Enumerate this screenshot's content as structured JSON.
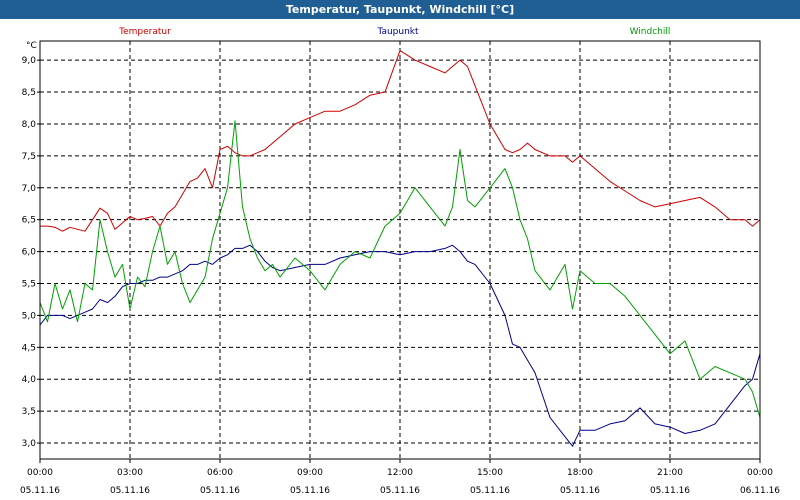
{
  "window": {
    "title": "Temperatur, Taupunkt, Windchill [°C]"
  },
  "legend": {
    "temperature": "Temperatur",
    "dewpoint": "Taupunkt",
    "windchill": "Windchill"
  },
  "chart_data": {
    "type": "line",
    "title": "Temperatur, Taupunkt, Windchill [°C]",
    "ylabel": "°C",
    "xlabel": "",
    "ylim": [
      2.75,
      9.3
    ],
    "xlim": [
      0,
      24
    ],
    "grid": true,
    "legend_position": "top",
    "y_ticks": [
      "3,0",
      "3,5",
      "4,0",
      "4,5",
      "5,0",
      "5,5",
      "6,0",
      "6,5",
      "7,0",
      "7,5",
      "8,0",
      "8,5",
      "9,0"
    ],
    "y_tick_values": [
      3.0,
      3.5,
      4.0,
      4.5,
      5.0,
      5.5,
      6.0,
      6.5,
      7.0,
      7.5,
      8.0,
      8.5,
      9.0
    ],
    "x_tick_hours": [
      0,
      3,
      6,
      9,
      12,
      15,
      18,
      21,
      24
    ],
    "x_tick_times": [
      "00:00",
      "03:00",
      "06:00",
      "09:00",
      "12:00",
      "15:00",
      "18:00",
      "21:00",
      "00:00"
    ],
    "x_tick_dates": [
      "05.11.16",
      "05.11.16",
      "05.11.16",
      "05.11.16",
      "05.11.16",
      "05.11.16",
      "05.11.16",
      "05.11.16",
      "06.11.16"
    ],
    "series": [
      {
        "name": "Temperatur",
        "color": "#d00000",
        "x": [
          0,
          0.25,
          0.5,
          0.75,
          1,
          1.25,
          1.5,
          1.75,
          2,
          2.25,
          2.5,
          2.75,
          3,
          3.25,
          3.5,
          3.75,
          4,
          4.25,
          4.5,
          4.75,
          5,
          5.25,
          5.5,
          5.75,
          6,
          6.25,
          6.5,
          6.75,
          7,
          7.25,
          7.5,
          7.75,
          8,
          8.5,
          9,
          9.5,
          10,
          10.5,
          11,
          11.5,
          12,
          12.5,
          13,
          13.5,
          13.75,
          14,
          14.25,
          14.5,
          15,
          15.5,
          15.75,
          16,
          16.25,
          16.5,
          17,
          17.5,
          17.75,
          18,
          18.5,
          19,
          19.5,
          20,
          20.5,
          21,
          21.5,
          22,
          22.5,
          23,
          23.5,
          23.75,
          24
        ],
        "values": [
          6.4,
          6.4,
          6.38,
          6.32,
          6.38,
          6.35,
          6.32,
          6.5,
          6.68,
          6.6,
          6.35,
          6.45,
          6.55,
          6.5,
          6.52,
          6.55,
          6.4,
          6.6,
          6.7,
          6.9,
          7.1,
          7.15,
          7.3,
          7.0,
          7.6,
          7.65,
          7.55,
          7.5,
          7.5,
          7.55,
          7.6,
          7.7,
          7.8,
          8.0,
          8.1,
          8.2,
          8.2,
          8.3,
          8.45,
          8.5,
          9.15,
          9.0,
          8.9,
          8.8,
          8.9,
          9.0,
          8.9,
          8.6,
          8.0,
          7.6,
          7.55,
          7.6,
          7.7,
          7.6,
          7.5,
          7.5,
          7.4,
          7.5,
          7.3,
          7.1,
          6.95,
          6.8,
          6.7,
          6.75,
          6.8,
          6.85,
          6.7,
          6.5,
          6.5,
          6.4,
          6.5
        ]
      },
      {
        "name": "Taupunkt",
        "color": "#00008c",
        "x": [
          0,
          0.25,
          0.5,
          0.75,
          1,
          1.25,
          1.5,
          1.75,
          2,
          2.25,
          2.5,
          2.75,
          3,
          3.25,
          3.5,
          3.75,
          4,
          4.25,
          4.5,
          4.75,
          5,
          5.25,
          5.5,
          5.75,
          6,
          6.25,
          6.5,
          6.75,
          7,
          7.25,
          7.5,
          7.75,
          8,
          8.5,
          9,
          9.5,
          10,
          10.5,
          11,
          11.5,
          12,
          12.5,
          13,
          13.5,
          13.75,
          14,
          14.25,
          14.5,
          15,
          15.5,
          15.75,
          16,
          16.25,
          16.5,
          17,
          17.5,
          17.75,
          18,
          18.5,
          19,
          19.5,
          20,
          20.5,
          21,
          21.5,
          22,
          22.5,
          23,
          23.5,
          23.75,
          24
        ],
        "values": [
          4.85,
          5.0,
          5.0,
          5.0,
          4.95,
          5.0,
          5.05,
          5.1,
          5.25,
          5.2,
          5.3,
          5.45,
          5.5,
          5.5,
          5.55,
          5.55,
          5.6,
          5.6,
          5.65,
          5.7,
          5.8,
          5.8,
          5.85,
          5.8,
          5.9,
          5.95,
          6.05,
          6.05,
          6.1,
          6.0,
          5.85,
          5.75,
          5.7,
          5.75,
          5.8,
          5.8,
          5.9,
          5.95,
          6.0,
          6.0,
          5.95,
          6.0,
          6.0,
          6.05,
          6.1,
          6.0,
          5.85,
          5.8,
          5.5,
          5.0,
          4.55,
          4.5,
          4.3,
          4.1,
          3.4,
          3.1,
          2.95,
          3.2,
          3.2,
          3.3,
          3.35,
          3.55,
          3.3,
          3.25,
          3.15,
          3.2,
          3.3,
          3.6,
          3.9,
          4.0,
          4.4
        ]
      },
      {
        "name": "Windchill",
        "color": "#00a000",
        "x": [
          0,
          0.25,
          0.5,
          0.75,
          1,
          1.25,
          1.5,
          1.75,
          2,
          2.25,
          2.5,
          2.75,
          3,
          3.25,
          3.5,
          3.75,
          4,
          4.25,
          4.5,
          4.75,
          5,
          5.25,
          5.5,
          5.75,
          6,
          6.25,
          6.5,
          6.75,
          7,
          7.25,
          7.5,
          7.75,
          8,
          8.5,
          9,
          9.5,
          10,
          10.5,
          11,
          11.5,
          12,
          12.5,
          13,
          13.5,
          13.75,
          14,
          14.25,
          14.5,
          15,
          15.5,
          15.75,
          16,
          16.25,
          16.5,
          17,
          17.5,
          17.75,
          18,
          18.5,
          19,
          19.5,
          20,
          20.5,
          21,
          21.5,
          22,
          22.5,
          23,
          23.5,
          23.75,
          24
        ],
        "values": [
          5.2,
          4.9,
          5.5,
          5.1,
          5.4,
          4.9,
          5.5,
          5.4,
          6.5,
          6.0,
          5.6,
          5.8,
          5.1,
          5.6,
          5.45,
          6.0,
          6.4,
          5.8,
          6.0,
          5.5,
          5.2,
          5.4,
          5.6,
          6.2,
          6.6,
          7.0,
          8.05,
          6.7,
          6.2,
          5.9,
          5.7,
          5.8,
          5.6,
          5.9,
          5.7,
          5.4,
          5.8,
          6.0,
          5.9,
          6.4,
          6.6,
          7.0,
          6.7,
          6.4,
          6.7,
          7.6,
          6.8,
          6.7,
          7.0,
          7.3,
          7.0,
          6.5,
          6.2,
          5.7,
          5.4,
          5.8,
          5.1,
          5.7,
          5.5,
          5.5,
          5.3,
          5.0,
          4.7,
          4.4,
          4.6,
          4.0,
          4.2,
          4.1,
          4.0,
          3.8,
          3.4
        ]
      }
    ]
  }
}
